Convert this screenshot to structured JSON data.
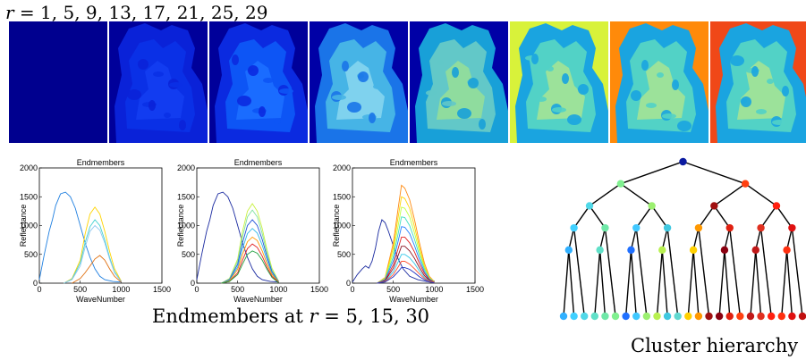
{
  "figure": {
    "r_caption_prefix": "r = ",
    "r_values_text": "1, 5, 9, 13, 17, 21, 25, 29",
    "endmembers_caption_prefix": "Endmembers at ",
    "endmembers_caption_r": "r",
    "endmembers_caption_values": " = 5, 15, 30",
    "hierarchy_caption": "Cluster hierarchy"
  },
  "tiles": [
    {
      "r": 1,
      "bg": "#00008f",
      "fg": "#00008f",
      "mid": "#00008f",
      "hi": "#00008f"
    },
    {
      "r": 5,
      "bg": "#00009a",
      "fg": "#0a22d8",
      "mid": "#0a30e6",
      "hi": "#123cf0"
    },
    {
      "r": 9,
      "bg": "#00009a",
      "fg": "#0b2ae0",
      "mid": "#0d55f5",
      "hi": "#1a6cff"
    },
    {
      "r": 13,
      "bg": "#0000a6",
      "fg": "#1a74e8",
      "mid": "#46b4e6",
      "hi": "#7fd2ee"
    },
    {
      "r": 17,
      "bg": "#0000a6",
      "fg": "#18a0d8",
      "mid": "#62c8c8",
      "hi": "#8fdc9e"
    },
    {
      "r": 21,
      "bg": "#d8f23a",
      "fg": "#1aa4e0",
      "mid": "#52d2c6",
      "hi": "#9ce29a"
    },
    {
      "r": 25,
      "bg": "#ff8a0a",
      "fg": "#1aa4e0",
      "mid": "#52d2c6",
      "hi": "#9ce29a"
    },
    {
      "r": 29,
      "bg": "#f04818",
      "fg": "#1aa4e0",
      "mid": "#52d2c6",
      "hi": "#9ce29a"
    }
  ],
  "chart_data": [
    {
      "type": "line",
      "title": "Endmembers",
      "xlabel": "WaveNumber",
      "ylabel": "Reflectance",
      "xlim": [
        0,
        1500
      ],
      "ylim": [
        0,
        2000
      ],
      "xticks": [
        "0",
        "500",
        "1000",
        "1500"
      ],
      "yticks": [
        "0",
        "500",
        "1000",
        "1500",
        "2000"
      ],
      "series": [
        {
          "color": "#1f7fe0",
          "x": [
            0,
            60,
            120,
            160,
            200,
            260,
            320,
            380,
            440,
            500,
            560,
            620,
            680,
            740,
            800,
            900,
            1000
          ],
          "y": [
            60,
            500,
            900,
            1100,
            1350,
            1550,
            1580,
            1500,
            1300,
            1000,
            700,
            450,
            250,
            120,
            60,
            30,
            20
          ]
        },
        {
          "color": "#ffd400",
          "x": [
            300,
            400,
            500,
            560,
            620,
            680,
            740,
            800,
            860,
            920,
            1000
          ],
          "y": [
            0,
            80,
            400,
            850,
            1200,
            1320,
            1200,
            900,
            550,
            250,
            40
          ]
        },
        {
          "color": "#40d0d0",
          "x": [
            300,
            400,
            500,
            560,
            620,
            680,
            740,
            800,
            860,
            920,
            1000
          ],
          "y": [
            0,
            70,
            350,
            700,
            980,
            1100,
            1000,
            750,
            450,
            200,
            30
          ]
        },
        {
          "color": "#8ec8f0",
          "x": [
            300,
            400,
            500,
            560,
            620,
            680,
            740,
            800,
            860,
            920,
            1000
          ],
          "y": [
            0,
            60,
            300,
            620,
            900,
            1000,
            920,
            700,
            420,
            180,
            30
          ]
        },
        {
          "color": "#e07010",
          "x": [
            400,
            500,
            560,
            620,
            680,
            740,
            800,
            860,
            920,
            1000
          ],
          "y": [
            0,
            80,
            180,
            300,
            420,
            480,
            400,
            250,
            120,
            20
          ]
        }
      ]
    },
    {
      "type": "line",
      "title": "Endmembers",
      "xlabel": "WaveNumber",
      "ylabel": "Reflectance",
      "xlim": [
        0,
        1500
      ],
      "ylim": [
        0,
        2000
      ],
      "xticks": [
        "0",
        "500",
        "1000",
        "1500"
      ],
      "yticks": [
        "0",
        "500",
        "1000",
        "1500",
        "2000"
      ],
      "series": [
        {
          "color": "#1a2aa0",
          "x": [
            0,
            60,
            120,
            160,
            200,
            260,
            320,
            380,
            440,
            500,
            560,
            620,
            680,
            740,
            800,
            900,
            1000
          ],
          "y": [
            60,
            500,
            900,
            1100,
            1350,
            1550,
            1580,
            1500,
            1300,
            1000,
            700,
            450,
            250,
            120,
            60,
            30,
            20
          ]
        },
        {
          "color": "#c8f040",
          "x": [
            300,
            400,
            500,
            560,
            620,
            680,
            740,
            800,
            860,
            920,
            1000
          ],
          "y": [
            0,
            80,
            420,
            900,
            1250,
            1380,
            1250,
            950,
            580,
            260,
            40
          ]
        },
        {
          "color": "#7ee0a0",
          "x": [
            300,
            400,
            500,
            560,
            620,
            680,
            740,
            800,
            860,
            920,
            1000
          ],
          "y": [
            0,
            70,
            380,
            800,
            1150,
            1270,
            1150,
            860,
            520,
            230,
            30
          ]
        },
        {
          "color": "#2050d8",
          "x": [
            300,
            400,
            500,
            560,
            620,
            680,
            740,
            800,
            860,
            920,
            1000
          ],
          "y": [
            0,
            60,
            330,
            700,
            1000,
            1100,
            1000,
            760,
            460,
            200,
            30
          ]
        },
        {
          "color": "#30b8e8",
          "x": [
            300,
            400,
            500,
            560,
            620,
            680,
            740,
            800,
            860,
            920,
            1000
          ],
          "y": [
            0,
            50,
            280,
            600,
            860,
            950,
            870,
            660,
            400,
            170,
            30
          ]
        },
        {
          "color": "#ff9800",
          "x": [
            300,
            400,
            500,
            560,
            620,
            680,
            740,
            800,
            860,
            920,
            1000
          ],
          "y": [
            0,
            40,
            240,
            500,
            720,
            800,
            740,
            560,
            340,
            150,
            20
          ]
        },
        {
          "color": "#e02020",
          "x": [
            300,
            400,
            500,
            560,
            620,
            680,
            740,
            800,
            860,
            920,
            1000
          ],
          "y": [
            0,
            30,
            180,
            400,
            600,
            680,
            620,
            470,
            280,
            120,
            20
          ]
        },
        {
          "color": "#20a040",
          "x": [
            300,
            400,
            500,
            560,
            620,
            680,
            740,
            800,
            860,
            920,
            1000
          ],
          "y": [
            0,
            30,
            150,
            330,
            500,
            560,
            520,
            400,
            240,
            100,
            10
          ]
        }
      ]
    },
    {
      "type": "line",
      "title": "Endmembers",
      "xlabel": "WaveNumber",
      "ylabel": "Reflectance",
      "xlim": [
        0,
        1500
      ],
      "ylim": [
        0,
        2000
      ],
      "xticks": [
        "0",
        "500",
        "1000",
        "1500"
      ],
      "yticks": [
        "0",
        "500",
        "1000",
        "1500",
        "2000"
      ],
      "series": [
        {
          "color": "#1a2aa0",
          "x": [
            0,
            60,
            120,
            160,
            200,
            240,
            280,
            320,
            360,
            400,
            440,
            500,
            560,
            620,
            700,
            800,
            900,
            1000
          ],
          "y": [
            20,
            150,
            250,
            300,
            260,
            380,
            600,
            900,
            1100,
            1050,
            900,
            650,
            420,
            250,
            120,
            60,
            30,
            20
          ]
        },
        {
          "color": "#ff8a10",
          "x": [
            300,
            400,
            500,
            560,
            600,
            640,
            700,
            760,
            820,
            880,
            940,
            1000
          ],
          "y": [
            0,
            100,
            700,
            1300,
            1700,
            1650,
            1450,
            1100,
            700,
            350,
            120,
            30
          ]
        },
        {
          "color": "#ffd400",
          "x": [
            300,
            400,
            500,
            560,
            600,
            640,
            700,
            760,
            820,
            880,
            940,
            1000
          ],
          "y": [
            0,
            90,
            620,
            1150,
            1500,
            1470,
            1300,
            980,
            620,
            300,
            100,
            30
          ]
        },
        {
          "color": "#c0ff40",
          "x": [
            300,
            400,
            500,
            560,
            600,
            640,
            700,
            760,
            820,
            880,
            940,
            1000
          ],
          "y": [
            0,
            80,
            540,
            1000,
            1320,
            1300,
            1150,
            870,
            550,
            270,
            90,
            30
          ]
        },
        {
          "color": "#40e0c0",
          "x": [
            300,
            400,
            500,
            560,
            600,
            640,
            700,
            760,
            820,
            880,
            940,
            1000
          ],
          "y": [
            0,
            70,
            460,
            860,
            1150,
            1140,
            1000,
            760,
            480,
            240,
            80,
            20
          ]
        },
        {
          "color": "#2080ff",
          "x": [
            300,
            400,
            500,
            560,
            600,
            640,
            700,
            760,
            820,
            880,
            940,
            1000
          ],
          "y": [
            0,
            60,
            390,
            730,
            980,
            970,
            860,
            650,
            410,
            200,
            70,
            20
          ]
        },
        {
          "color": "#e02020",
          "x": [
            300,
            400,
            500,
            560,
            600,
            640,
            700,
            760,
            820,
            880,
            940,
            1000
          ],
          "y": [
            0,
            50,
            320,
            600,
            800,
            800,
            700,
            540,
            340,
            170,
            60,
            20
          ]
        },
        {
          "color": "#8a1020",
          "x": [
            300,
            400,
            500,
            560,
            600,
            640,
            700,
            760,
            820,
            880,
            940,
            1000
          ],
          "y": [
            0,
            40,
            260,
            480,
            640,
            640,
            560,
            430,
            270,
            130,
            50,
            10
          ]
        },
        {
          "color": "#30c8e8",
          "x": [
            300,
            400,
            500,
            560,
            600,
            640,
            700,
            760,
            820,
            880,
            940,
            1000
          ],
          "y": [
            0,
            30,
            200,
            370,
            500,
            500,
            440,
            340,
            210,
            100,
            40,
            10
          ]
        },
        {
          "color": "#ff5030",
          "x": [
            300,
            400,
            500,
            560,
            600,
            640,
            700,
            760,
            820,
            880,
            940,
            1000
          ],
          "y": [
            0,
            25,
            150,
            280,
            380,
            380,
            330,
            250,
            160,
            80,
            30,
            10
          ]
        },
        {
          "color": "#2030c0",
          "x": [
            300,
            400,
            500,
            560,
            600,
            640,
            700,
            760,
            820,
            880,
            940,
            1000
          ],
          "y": [
            0,
            20,
            110,
            200,
            270,
            270,
            240,
            180,
            110,
            60,
            20,
            5
          ]
        }
      ]
    }
  ],
  "hierarchy": {
    "levels": 7,
    "leaf_colors": [
      "#30b0ff",
      "#40d0ff",
      "#50d8e8",
      "#60e0c8",
      "#70e8a8",
      "#80f090",
      "#2070ff",
      "#40c8ff",
      "#9cf070",
      "#b8f050",
      "#40c8e0",
      "#60d8d0",
      "#ffd000",
      "#ff9800",
      "#a01010",
      "#8a0010",
      "#e02010",
      "#ff4010",
      "#c01818",
      "#e03020",
      "#ff2010",
      "#ff3010",
      "#e01010",
      "#c01010"
    ]
  }
}
